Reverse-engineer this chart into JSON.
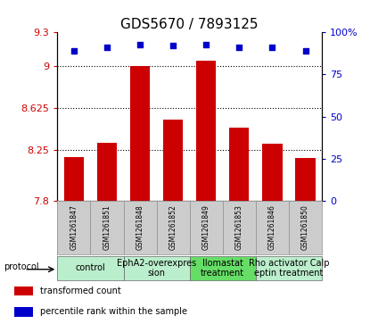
{
  "title": "GDS5670 / 7893125",
  "samples": [
    "GSM1261847",
    "GSM1261851",
    "GSM1261848",
    "GSM1261852",
    "GSM1261849",
    "GSM1261853",
    "GSM1261846",
    "GSM1261850"
  ],
  "bar_values": [
    8.19,
    8.32,
    9.0,
    8.52,
    9.05,
    8.45,
    8.31,
    8.18
  ],
  "dot_values": [
    89,
    91,
    93,
    92,
    93,
    91,
    91,
    89
  ],
  "ylim_left": [
    7.8,
    9.3
  ],
  "ylim_right": [
    0,
    100
  ],
  "yticks_left": [
    7.8,
    8.25,
    8.625,
    9.0,
    9.3
  ],
  "yticks_right": [
    0,
    25,
    50,
    75,
    100
  ],
  "ytick_labels_left": [
    "7.8",
    "8.25",
    "8.625",
    "9",
    "9.3"
  ],
  "ytick_labels_right": [
    "0",
    "25",
    "50",
    "75",
    "100%"
  ],
  "hlines": [
    8.25,
    8.625,
    9.0
  ],
  "bar_color": "#cc0000",
  "dot_color": "#0000cc",
  "sample_bg_color": "#cccccc",
  "protocol_groups": [
    {
      "label": "control",
      "start": 0,
      "end": 2,
      "color": "#bbeecc"
    },
    {
      "label": "EphA2-overexpres\nsion",
      "start": 2,
      "end": 4,
      "color": "#bbeecc"
    },
    {
      "label": "Ilomastat\ntreatment",
      "start": 4,
      "end": 6,
      "color": "#66dd66"
    },
    {
      "label": "Rho activator Calp\neptin treatment",
      "start": 6,
      "end": 8,
      "color": "#bbeecc"
    }
  ],
  "legend_items": [
    {
      "color": "#cc0000",
      "label": "transformed count"
    },
    {
      "color": "#0000cc",
      "label": "percentile rank within the sample"
    }
  ],
  "left_tick_color": "#cc0000",
  "right_tick_color": "#0000cc",
  "title_fontsize": 11,
  "tick_fontsize": 8,
  "sample_fontsize": 5.5,
  "proto_fontsize": 7,
  "legend_fontsize": 7,
  "bar_width": 0.6
}
